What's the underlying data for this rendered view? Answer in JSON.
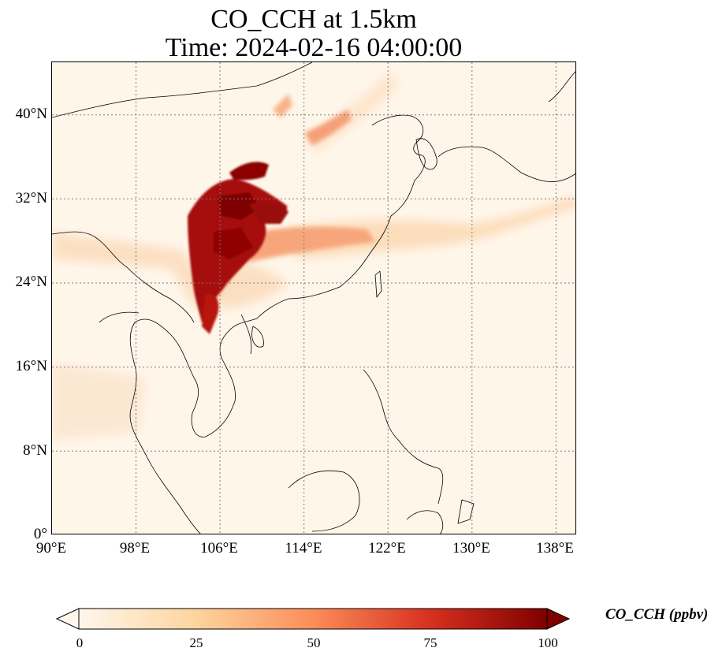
{
  "title": {
    "line1": "CO_CCH at 1.5km",
    "line2": "Time: 2024-02-16 04:00:00"
  },
  "map": {
    "lon_range": [
      90,
      140
    ],
    "lat_range": [
      0,
      45
    ],
    "y_ticks": [
      "40°N",
      "32°N",
      "24°N",
      "16°N",
      "8°N",
      "0°"
    ],
    "x_ticks": [
      "90°E",
      "98°E",
      "106°E",
      "114°E",
      "122°E",
      "130°E",
      "138°E"
    ],
    "gridlines": "dotted"
  },
  "colorbar": {
    "label": "CO_CCH (ppbv)",
    "colormap": "OrRd",
    "ticks": [
      "0",
      "25",
      "50",
      "75",
      "100"
    ],
    "range": [
      0,
      100
    ],
    "extend": "both",
    "colors": [
      "#fff7ec",
      "#fdd49e",
      "#fc8d59",
      "#d7301f",
      "#7f0000"
    ]
  }
}
